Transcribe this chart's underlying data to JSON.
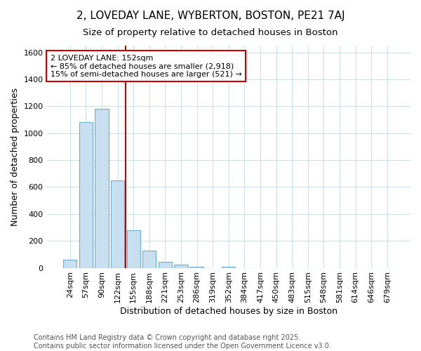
{
  "title": "2, LOVEDAY LANE, WYBERTON, BOSTON, PE21 7AJ",
  "subtitle": "Size of property relative to detached houses in Boston",
  "xlabel": "Distribution of detached houses by size in Boston",
  "ylabel": "Number of detached properties",
  "categories": [
    "24sqm",
    "57sqm",
    "90sqm",
    "122sqm",
    "155sqm",
    "188sqm",
    "221sqm",
    "253sqm",
    "286sqm",
    "319sqm",
    "352sqm",
    "384sqm",
    "417sqm",
    "450sqm",
    "483sqm",
    "515sqm",
    "548sqm",
    "581sqm",
    "614sqm",
    "646sqm",
    "679sqm"
  ],
  "values": [
    60,
    1080,
    1180,
    650,
    280,
    130,
    45,
    25,
    10,
    0,
    10,
    0,
    0,
    0,
    0,
    0,
    0,
    0,
    0,
    0,
    0
  ],
  "bar_color": "#c8dff0",
  "bar_edge_color": "#6aaed6",
  "vline_x_index": 3.5,
  "vline_color": "#cc0000",
  "annotation_text": "2 LOVEDAY LANE: 152sqm\n← 85% of detached houses are smaller (2,918)\n15% of semi-detached houses are larger (521) →",
  "annotation_box_color": "#ffffff",
  "annotation_box_edge_color": "#cc0000",
  "ylim": [
    0,
    1650
  ],
  "yticks": [
    0,
    200,
    400,
    600,
    800,
    1000,
    1200,
    1400,
    1600
  ],
  "grid_color": "#c8dff0",
  "plot_bg_color": "#ffffff",
  "fig_bg_color": "#ffffff",
  "footnote": "Contains HM Land Registry data © Crown copyright and database right 2025.\nContains public sector information licensed under the Open Government Licence v3.0.",
  "title_fontsize": 11,
  "subtitle_fontsize": 9.5,
  "axis_label_fontsize": 9,
  "tick_fontsize": 8,
  "annotation_fontsize": 8,
  "footnote_fontsize": 7
}
